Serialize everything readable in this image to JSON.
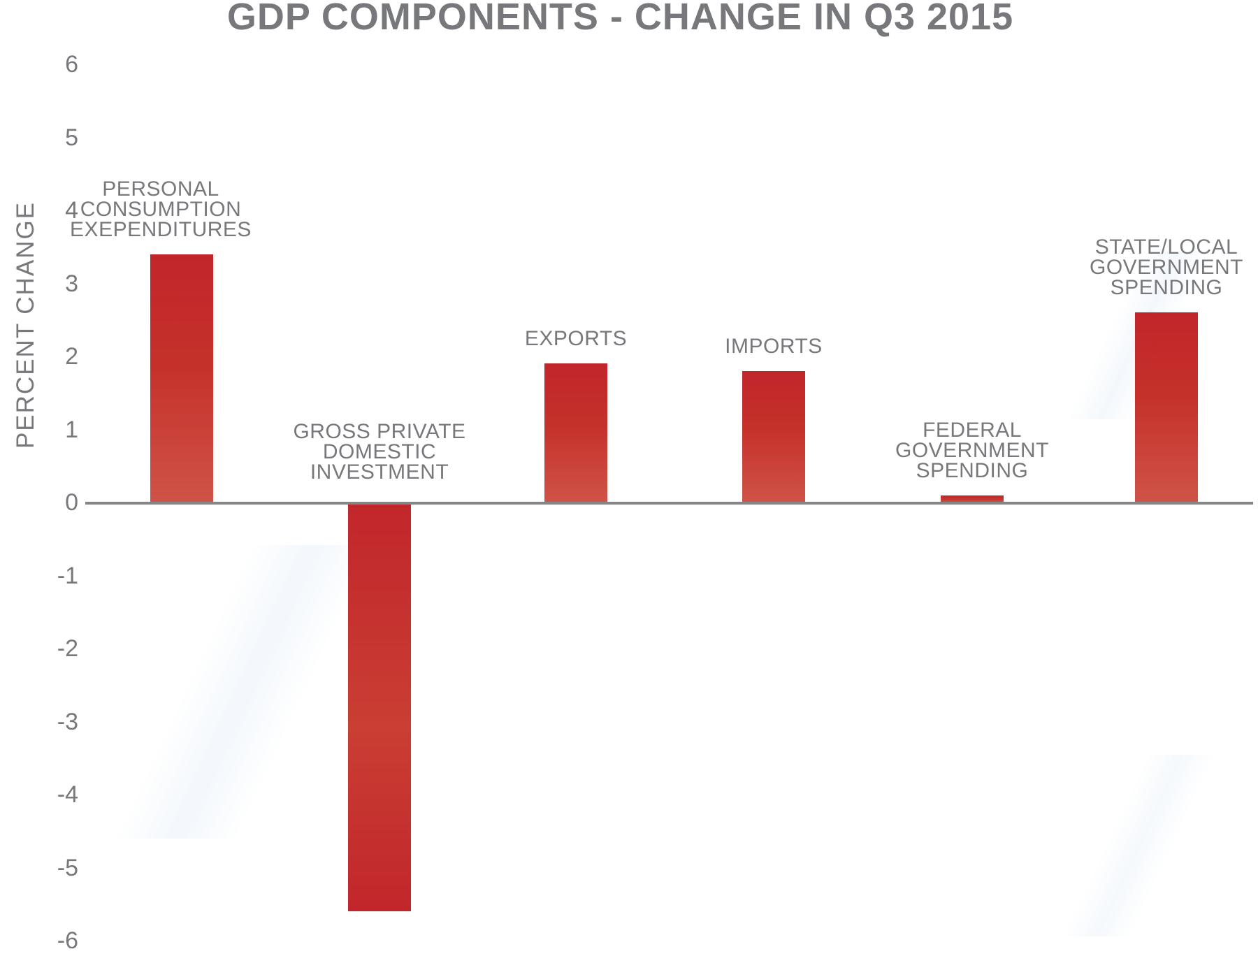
{
  "chart_data": {
    "type": "bar",
    "title": "GDP COMPONENTS - CHANGE IN Q3 2015",
    "ylabel": "PERCENT CHANGE",
    "xlabel": "",
    "categories": [
      "PERSONAL CONSUMPTION EXEPENDITURES",
      "GROSS PRIVATE DOMESTIC INVESTMENT",
      "EXPORTS",
      "IMPORTS",
      "FEDERAL GOVERNMENT SPENDING",
      "STATE/LOCAL GOVERNMENT SPENDING"
    ],
    "category_lines": [
      [
        "PERSONAL",
        "CONSUMPTION",
        "EXEPENDITURES"
      ],
      [
        "GROSS PRIVATE",
        "DOMESTIC",
        "INVESTMENT"
      ],
      [
        "EXPORTS"
      ],
      [
        "IMPORTS"
      ],
      [
        "FEDERAL",
        "GOVERNMENT",
        "SPENDING"
      ],
      [
        "STATE/LOCAL",
        "GOVERNMENT",
        "SPENDING"
      ]
    ],
    "values": [
      3.4,
      -5.6,
      1.9,
      1.8,
      0.1,
      2.6
    ],
    "ylim": [
      -6,
      6
    ],
    "ytick_step": 1,
    "ytick_labels": [
      "6",
      "5",
      "4",
      "3",
      "2",
      "1",
      "0",
      "-1",
      "-2",
      "-3",
      "-4",
      "-5",
      "-6"
    ],
    "grid": false,
    "legend": false,
    "colors": {
      "bar_top": "#c1262b",
      "bar_mid": "#c5312a",
      "bar_bottom": "#cf5348",
      "axis": "#858585",
      "text": "#77787b",
      "background": "#ffffff"
    }
  }
}
